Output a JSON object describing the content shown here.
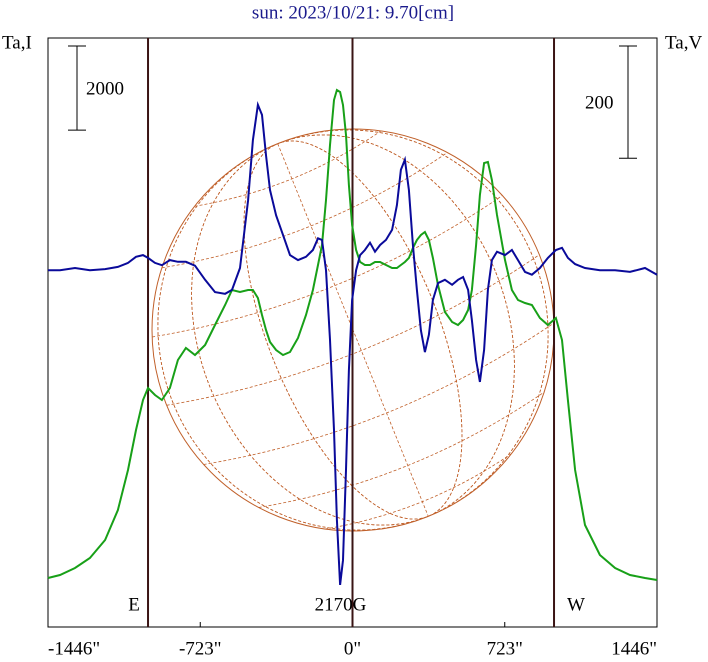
{
  "chart_data": {
    "type": "line",
    "title": "sun: 2023/10/21: 9.70[cm]",
    "ylabel": "Ta,I",
    "y2label": "Ta,V",
    "xlim": [
      -1446,
      1446
    ],
    "xticks": [
      {
        "value": -1446,
        "label": "-1446\""
      },
      {
        "value": -723,
        "label": "-723\""
      },
      {
        "value": 0,
        "label": "0\""
      },
      {
        "value": 723,
        "label": "723\""
      },
      {
        "value": 1446,
        "label": "1446\""
      }
    ],
    "ylim": [
      0,
      14000
    ],
    "y2lim": [
      -640,
      410
    ],
    "scale_bars": {
      "y": 2000,
      "y2": 200
    },
    "markers": [
      {
        "x": -971,
        "label": "E"
      },
      {
        "x": 0,
        "label": "2170G"
      },
      {
        "x": 957,
        "label": "W"
      }
    ],
    "marker_color": "#3a1414",
    "disk_color": "#c0602a",
    "x": [
      -1446,
      -1389,
      -1318,
      -1247,
      -1175,
      -1114,
      -1066,
      -1028,
      -995,
      -971,
      -938,
      -905,
      -867,
      -829,
      -791,
      -748,
      -700,
      -653,
      -605,
      -572,
      -534,
      -496,
      -473,
      -449,
      -430,
      -411,
      -392,
      -363,
      -330,
      -297,
      -259,
      -221,
      -188,
      -164,
      -145,
      -126,
      -107,
      -88,
      -74,
      -59,
      -45,
      -31,
      -17,
      -2,
      17,
      36,
      59,
      83,
      107,
      131,
      159,
      188,
      211,
      230,
      249,
      268,
      287,
      306,
      325,
      344,
      363,
      382,
      406,
      439,
      473,
      501,
      525,
      549,
      567,
      587,
      605,
      625,
      643,
      662,
      686,
      724,
      757,
      786,
      819,
      852,
      890,
      928,
      966,
      995,
      1023,
      1057,
      1104,
      1175,
      1247,
      1318,
      1389,
      1446
    ],
    "series": [
      {
        "color": "#18a018",
        "axis": "y",
        "values": [
          1165,
          1236,
          1402,
          1640,
          2068,
          2781,
          3732,
          4683,
          5396,
          5681,
          5515,
          5396,
          5681,
          6347,
          6632,
          6465,
          6703,
          7179,
          7654,
          8010,
          7963,
          8010,
          8010,
          7820,
          7416,
          7060,
          6774,
          6584,
          6465,
          6537,
          6870,
          7416,
          8010,
          8605,
          9080,
          10150,
          11457,
          12527,
          12764,
          12717,
          12408,
          11695,
          10506,
          9556,
          8961,
          8676,
          8605,
          8605,
          8676,
          8676,
          8605,
          8533,
          8533,
          8605,
          8676,
          8771,
          9009,
          9199,
          9318,
          9389,
          9199,
          8771,
          8129,
          7488,
          7250,
          7179,
          7297,
          7535,
          8010,
          9080,
          10269,
          11029,
          11053,
          10625,
          9793,
          8724,
          8010,
          7773,
          7701,
          7654,
          7345,
          7179,
          7345,
          6822,
          5396,
          3732,
          2425,
          1711,
          1402,
          1236,
          1165,
          1117
        ]
      },
      {
        "color": "#0a0a9a",
        "axis": "y2",
        "values": [
          -4,
          -4,
          0,
          -4,
          -2,
          2,
          9,
          20,
          23,
          18,
          9,
          5,
          14,
          11,
          11,
          4,
          -21,
          -43,
          -46,
          -39,
          0,
          121,
          228,
          291,
          273,
          201,
          139,
          94,
          59,
          23,
          14,
          20,
          32,
          53,
          50,
          -4,
          -128,
          -289,
          -449,
          -565,
          -521,
          -360,
          -182,
          -57,
          -4,
          23,
          32,
          45,
          29,
          41,
          50,
          68,
          112,
          175,
          193,
          139,
          41,
          -39,
          -111,
          -150,
          -119,
          -57,
          -27,
          -21,
          -30,
          -21,
          -16,
          -39,
          -93,
          -164,
          -203,
          -146,
          -39,
          14,
          29,
          23,
          32,
          14,
          -7,
          -12,
          0,
          18,
          32,
          36,
          18,
          7,
          0,
          -4,
          -4,
          -7,
          0,
          -12
        ]
      }
    ]
  }
}
